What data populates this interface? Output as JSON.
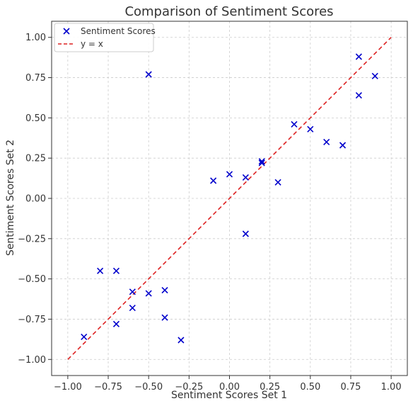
{
  "chart_data": {
    "type": "scatter",
    "title": "Comparison of Sentiment Scores",
    "xlabel": "Sentiment Scores Set 1",
    "ylabel": "Sentiment Scores Set 2",
    "xlim": [
      -1.1,
      1.1
    ],
    "ylim": [
      -1.1,
      1.1
    ],
    "xticks": [
      -1.0,
      -0.75,
      -0.5,
      -0.25,
      0.0,
      0.25,
      0.5,
      0.75,
      1.0
    ],
    "yticks": [
      -1.0,
      -0.75,
      -0.5,
      -0.25,
      0.0,
      0.25,
      0.5,
      0.75,
      1.0
    ],
    "xtick_labels": [
      "−1.00",
      "−0.75",
      "−0.50",
      "−0.25",
      "0.00",
      "0.25",
      "0.50",
      "0.75",
      "1.00"
    ],
    "ytick_labels": [
      "−1.00",
      "−0.75",
      "−0.50",
      "−0.25",
      "0.00",
      "0.25",
      "0.50",
      "0.75",
      "1.00"
    ],
    "grid": true,
    "legend_position": "top-left",
    "series": [
      {
        "name": "Sentiment Scores",
        "marker": "x",
        "color": "#0000cc",
        "points": [
          [
            -0.9,
            -0.86
          ],
          [
            -0.8,
            -0.45
          ],
          [
            -0.7,
            -0.45
          ],
          [
            -0.7,
            -0.78
          ],
          [
            -0.6,
            -0.58
          ],
          [
            -0.6,
            -0.68
          ],
          [
            -0.5,
            -0.59
          ],
          [
            -0.5,
            0.77
          ],
          [
            -0.4,
            -0.57
          ],
          [
            -0.4,
            -0.74
          ],
          [
            -0.3,
            -0.88
          ],
          [
            -0.1,
            0.11
          ],
          [
            0.0,
            0.15
          ],
          [
            0.1,
            0.13
          ],
          [
            0.1,
            -0.22
          ],
          [
            0.2,
            0.23
          ],
          [
            0.2,
            0.22
          ],
          [
            0.3,
            0.1
          ],
          [
            0.4,
            0.46
          ],
          [
            0.5,
            0.43
          ],
          [
            0.6,
            0.35
          ],
          [
            0.7,
            0.33
          ],
          [
            0.8,
            0.88
          ],
          [
            0.8,
            0.64
          ],
          [
            0.9,
            0.76
          ]
        ]
      },
      {
        "name": "y = x",
        "style": "dashed-line",
        "color": "#dd2222",
        "points": [
          [
            -1.0,
            -1.0
          ],
          [
            1.0,
            1.0
          ]
        ]
      }
    ]
  }
}
